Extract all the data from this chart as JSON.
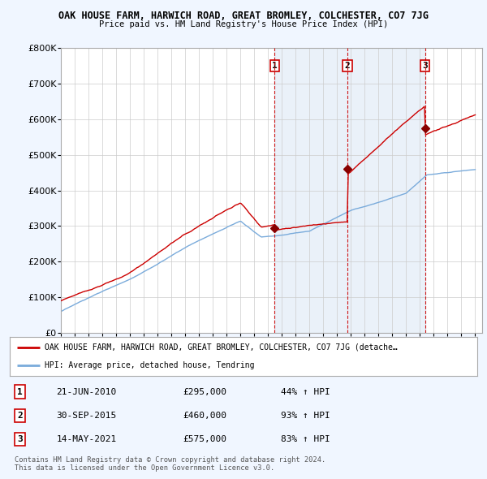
{
  "title": "OAK HOUSE FARM, HARWICH ROAD, GREAT BROMLEY, COLCHESTER, CO7 7JG",
  "subtitle": "Price paid vs. HM Land Registry's House Price Index (HPI)",
  "ylim": [
    0,
    800000
  ],
  "yticks": [
    0,
    100000,
    200000,
    300000,
    400000,
    500000,
    600000,
    700000,
    800000
  ],
  "sale_dates": [
    2010.47,
    2015.75,
    2021.37
  ],
  "sale_prices": [
    295000,
    460000,
    575000
  ],
  "sale_labels": [
    "1",
    "2",
    "3"
  ],
  "legend_red": "OAK HOUSE FARM, HARWICH ROAD, GREAT BROMLEY, COLCHESTER, CO7 7JG (detache…",
  "legend_blue": "HPI: Average price, detached house, Tendring",
  "table_data": [
    [
      "1",
      "21-JUN-2010",
      "£295,000",
      "44% ↑ HPI"
    ],
    [
      "2",
      "30-SEP-2015",
      "£460,000",
      "93% ↑ HPI"
    ],
    [
      "3",
      "14-MAY-2021",
      "£575,000",
      "83% ↑ HPI"
    ]
  ],
  "footnote": "Contains HM Land Registry data © Crown copyright and database right 2024.\nThis data is licensed under the Open Government Licence v3.0.",
  "bg_color": "#dce8f5",
  "plot_bg": "#ffffff",
  "shade_color": "#dce8f5",
  "red_color": "#cc0000",
  "blue_color": "#7aabdb",
  "grid_color": "#cccccc",
  "xlim_start": 1995,
  "xlim_end": 2025.5
}
